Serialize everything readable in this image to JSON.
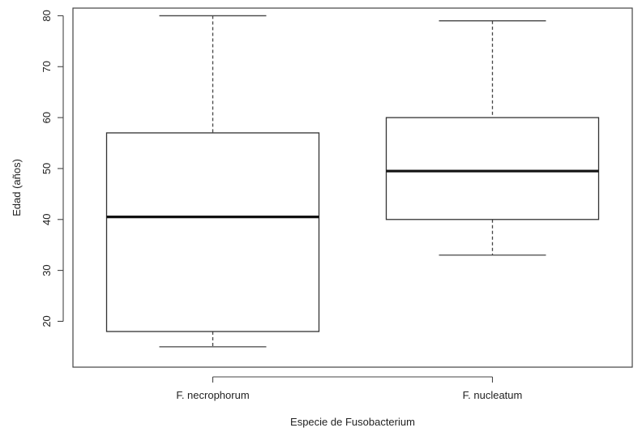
{
  "chart_data": {
    "type": "boxplot",
    "title": "",
    "xlabel": "Especie de Fusobacterium",
    "ylabel": "Edad (años)",
    "ylim": [
      11,
      81.5
    ],
    "yticks": [
      20,
      30,
      40,
      50,
      60,
      70,
      80
    ],
    "grid": false,
    "categories": [
      "F. necrophorum",
      "F. nucleatum"
    ],
    "boxes": [
      {
        "category": "F. necrophorum",
        "min": 15,
        "q1": 18,
        "median": 40.5,
        "q3": 57,
        "max": 80
      },
      {
        "category": "F. nucleatum",
        "min": 33,
        "q1": 40,
        "median": 49.5,
        "q3": 60,
        "max": 79
      }
    ]
  }
}
